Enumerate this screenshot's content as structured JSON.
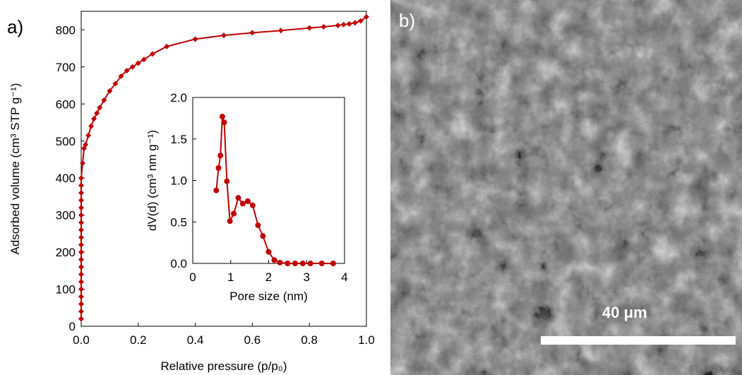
{
  "panel_a": {
    "label": "a)",
    "chart_data": {
      "type": "line",
      "xlabel": "Relative pressure (p/p₀)",
      "ylabel": "Adsorbed volume (cm³ STP g⁻¹)",
      "xlim": [
        0,
        1.0
      ],
      "ylim": [
        0,
        850
      ],
      "x_ticks": [
        "0.0",
        "0.2",
        "0.4",
        "0.6",
        "0.8",
        "1.0"
      ],
      "y_ticks": [
        "0",
        "100",
        "200",
        "300",
        "400",
        "500",
        "600",
        "700",
        "800"
      ],
      "grid": false,
      "marker": "diamond",
      "color": "#c00000",
      "x": [
        0.0,
        0.0,
        0.0,
        0.0,
        0.0,
        0.0,
        0.0,
        0.0,
        0.0,
        0.0,
        0.0,
        0.0,
        0.0,
        0.0,
        0.0,
        0.0,
        0.0,
        0.0,
        0.0,
        0.0,
        0.005,
        0.01,
        0.015,
        0.025,
        0.035,
        0.045,
        0.055,
        0.065,
        0.08,
        0.1,
        0.12,
        0.14,
        0.16,
        0.18,
        0.2,
        0.22,
        0.25,
        0.3,
        0.4,
        0.5,
        0.6,
        0.7,
        0.8,
        0.85,
        0.9,
        0.92,
        0.94,
        0.96,
        0.98,
        1.0
      ],
      "y": [
        20,
        40,
        60,
        80,
        100,
        120,
        140,
        160,
        180,
        200,
        220,
        240,
        260,
        280,
        300,
        320,
        340,
        360,
        380,
        400,
        440,
        480,
        490,
        515,
        540,
        560,
        575,
        590,
        610,
        635,
        655,
        675,
        690,
        700,
        710,
        720,
        735,
        755,
        775,
        785,
        792,
        798,
        805,
        808,
        812,
        814,
        816,
        819,
        824,
        835
      ]
    },
    "inset": {
      "chart_data": {
        "type": "line",
        "xlabel": "Pore size (nm)",
        "ylabel": "dV(d) (cm³ nm g⁻¹)",
        "xlim": [
          0,
          4
        ],
        "ylim": [
          0,
          2.0
        ],
        "x_ticks": [
          "0",
          "1",
          "2",
          "3",
          "4"
        ],
        "y_ticks": [
          "0.0",
          "0.5",
          "1.0",
          "1.5",
          "2.0"
        ],
        "grid": false,
        "marker": "circle",
        "color": "#c00000",
        "x": [
          0.62,
          0.68,
          0.73,
          0.78,
          0.83,
          0.9,
          0.98,
          1.08,
          1.2,
          1.32,
          1.45,
          1.58,
          1.72,
          1.85,
          2.0,
          2.15,
          2.3,
          2.5,
          2.7,
          2.9,
          3.1,
          3.4,
          3.7
        ],
        "y": [
          0.88,
          1.15,
          1.3,
          1.77,
          1.7,
          0.99,
          0.51,
          0.6,
          0.79,
          0.72,
          0.75,
          0.7,
          0.46,
          0.33,
          0.14,
          0.04,
          0.01,
          0.0,
          0.0,
          0.0,
          0.0,
          0.0,
          0.0
        ]
      }
    }
  },
  "panel_b": {
    "label": "b)",
    "scale_label": "40 μm"
  }
}
